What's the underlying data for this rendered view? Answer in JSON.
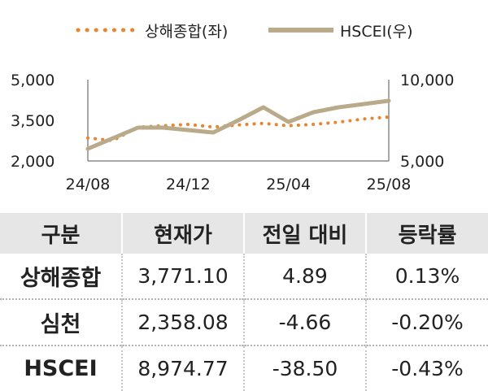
{
  "chart_data": {
    "type": "line",
    "x_ticks": [
      "24/08",
      "24/12",
      "25/04",
      "25/08"
    ],
    "y_left_ticks": [
      "5,000",
      "3,500",
      "2,000"
    ],
    "y_right_ticks": [
      "10,000",
      "5,000"
    ],
    "ylim_left": [
      2000,
      5000
    ],
    "ylim_right": [
      5000,
      10000
    ],
    "legend_position": "top",
    "colors": {
      "shanghai": "#e8852f",
      "hscei": "#b9aa8a"
    },
    "series": [
      {
        "name": "상해종합(좌)",
        "axis": "left",
        "style": "dotted",
        "x": [
          "24/08",
          "24/09",
          "24/10",
          "24/11",
          "24/12",
          "25/01",
          "25/02",
          "25/03",
          "25/04",
          "25/05",
          "25/06",
          "25/07",
          "25/08"
        ],
        "values": [
          2850,
          2750,
          3250,
          3300,
          3350,
          3250,
          3330,
          3390,
          3300,
          3350,
          3430,
          3550,
          3620
        ]
      },
      {
        "name": "HSCEI(우)",
        "axis": "right",
        "style": "solid",
        "x": [
          "24/08",
          "24/09",
          "24/10",
          "24/11",
          "24/12",
          "25/01",
          "25/02",
          "25/03",
          "25/04",
          "25/05",
          "25/06",
          "25/07",
          "25/08"
        ],
        "values": [
          5750,
          6400,
          7050,
          7050,
          6900,
          6750,
          7500,
          8300,
          7400,
          8000,
          8300,
          8500,
          8700
        ]
      }
    ]
  },
  "table": {
    "headers": [
      "구분",
      "현재가",
      "전일 대비",
      "등락률"
    ],
    "rows": [
      [
        "상해종합",
        "3,771.10",
        "4.89",
        "0.13%"
      ],
      [
        "심천",
        "2,358.08",
        "-4.66",
        "-0.20%"
      ],
      [
        "HSCEI",
        "8,974.77",
        "-38.50",
        "-0.43%"
      ]
    ]
  }
}
